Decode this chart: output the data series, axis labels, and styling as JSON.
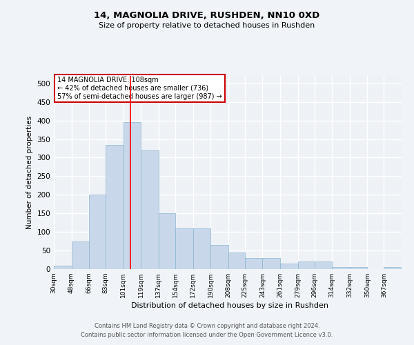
{
  "title": "14, MAGNOLIA DRIVE, RUSHDEN, NN10 0XD",
  "subtitle": "Size of property relative to detached houses in Rushden",
  "xlabel": "Distribution of detached houses by size in Rushden",
  "ylabel": "Number of detached properties",
  "bar_color": "#c8d8ea",
  "bar_edge_color": "#8ab4d0",
  "background_color": "#eef2f7",
  "grid_color": "#ffffff",
  "red_line_x": 108,
  "bin_edges": [
    30,
    48,
    66,
    83,
    101,
    119,
    137,
    154,
    172,
    190,
    208,
    225,
    243,
    261,
    279,
    296,
    314,
    332,
    350,
    367,
    385
  ],
  "bar_heights": [
    10,
    75,
    200,
    335,
    395,
    320,
    150,
    110,
    110,
    65,
    45,
    30,
    30,
    15,
    20,
    20,
    5,
    5,
    0,
    5
  ],
  "annotation_text": "14 MAGNOLIA DRIVE: 108sqm\n← 42% of detached houses are smaller (736)\n57% of semi-detached houses are larger (987) →",
  "annotation_box_color": "#ffffff",
  "annotation_box_edge": "#cc0000",
  "ylim": [
    0,
    520
  ],
  "yticks": [
    0,
    50,
    100,
    150,
    200,
    250,
    300,
    350,
    400,
    450,
    500
  ],
  "footer_line1": "Contains HM Land Registry data © Crown copyright and database right 2024.",
  "footer_line2": "Contains public sector information licensed under the Open Government Licence v3.0."
}
